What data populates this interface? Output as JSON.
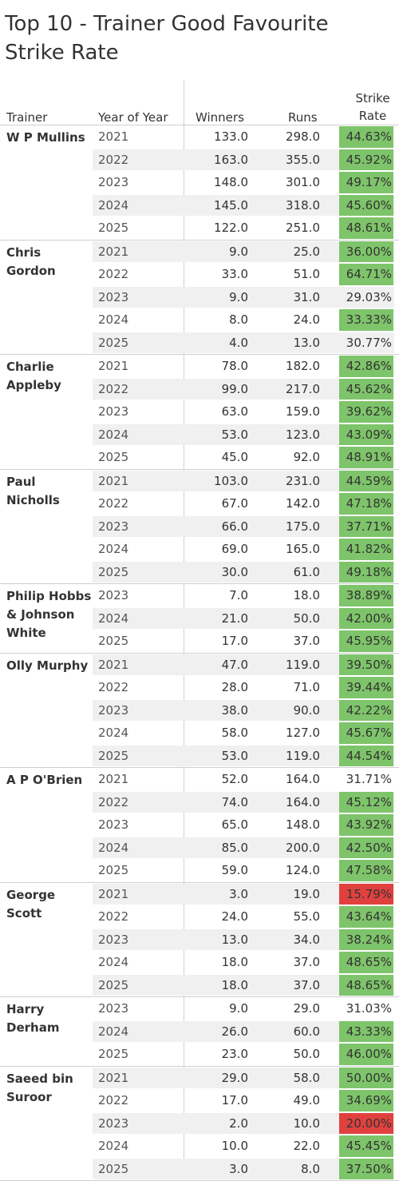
{
  "title": "Top 10 - Trainer Good Favourite Strike Rate",
  "headers": {
    "trainer": "Trainer",
    "year": "Year of Year",
    "winners": "Winners",
    "runs": "Runs",
    "strike_rate_line1": "Strike",
    "strike_rate_line2": "Rate"
  },
  "colors": {
    "green": "#7ec46a",
    "red": "#e0413e"
  },
  "chart_data": {
    "type": "table",
    "columns": [
      "Trainer",
      "Year of Year",
      "Winners",
      "Runs",
      "Strike Rate"
    ],
    "groups": [
      {
        "trainer": "W P Mullins",
        "rows": [
          {
            "year": "2021",
            "winners": "133.0",
            "runs": "298.0",
            "sr": "44.63%",
            "color": "green"
          },
          {
            "year": "2022",
            "winners": "163.0",
            "runs": "355.0",
            "sr": "45.92%",
            "color": "green"
          },
          {
            "year": "2023",
            "winners": "148.0",
            "runs": "301.0",
            "sr": "49.17%",
            "color": "green"
          },
          {
            "year": "2024",
            "winners": "145.0",
            "runs": "318.0",
            "sr": "45.60%",
            "color": "green"
          },
          {
            "year": "2025",
            "winners": "122.0",
            "runs": "251.0",
            "sr": "48.61%",
            "color": "green"
          }
        ]
      },
      {
        "trainer": "Chris Gordon",
        "rows": [
          {
            "year": "2021",
            "winners": "9.0",
            "runs": "25.0",
            "sr": "36.00%",
            "color": "green"
          },
          {
            "year": "2022",
            "winners": "33.0",
            "runs": "51.0",
            "sr": "64.71%",
            "color": "green"
          },
          {
            "year": "2023",
            "winners": "9.0",
            "runs": "31.0",
            "sr": "29.03%",
            "color": "none"
          },
          {
            "year": "2024",
            "winners": "8.0",
            "runs": "24.0",
            "sr": "33.33%",
            "color": "green"
          },
          {
            "year": "2025",
            "winners": "4.0",
            "runs": "13.0",
            "sr": "30.77%",
            "color": "none"
          }
        ]
      },
      {
        "trainer": "Charlie Appleby",
        "rows": [
          {
            "year": "2021",
            "winners": "78.0",
            "runs": "182.0",
            "sr": "42.86%",
            "color": "green"
          },
          {
            "year": "2022",
            "winners": "99.0",
            "runs": "217.0",
            "sr": "45.62%",
            "color": "green"
          },
          {
            "year": "2023",
            "winners": "63.0",
            "runs": "159.0",
            "sr": "39.62%",
            "color": "green"
          },
          {
            "year": "2024",
            "winners": "53.0",
            "runs": "123.0",
            "sr": "43.09%",
            "color": "green"
          },
          {
            "year": "2025",
            "winners": "45.0",
            "runs": "92.0",
            "sr": "48.91%",
            "color": "green"
          }
        ]
      },
      {
        "trainer": "Paul Nicholls",
        "rows": [
          {
            "year": "2021",
            "winners": "103.0",
            "runs": "231.0",
            "sr": "44.59%",
            "color": "green"
          },
          {
            "year": "2022",
            "winners": "67.0",
            "runs": "142.0",
            "sr": "47.18%",
            "color": "green"
          },
          {
            "year": "2023",
            "winners": "66.0",
            "runs": "175.0",
            "sr": "37.71%",
            "color": "green"
          },
          {
            "year": "2024",
            "winners": "69.0",
            "runs": "165.0",
            "sr": "41.82%",
            "color": "green"
          },
          {
            "year": "2025",
            "winners": "30.0",
            "runs": "61.0",
            "sr": "49.18%",
            "color": "green"
          }
        ]
      },
      {
        "trainer": "Philip Hobbs & Johnson White",
        "rows": [
          {
            "year": "2023",
            "winners": "7.0",
            "runs": "18.0",
            "sr": "38.89%",
            "color": "green"
          },
          {
            "year": "2024",
            "winners": "21.0",
            "runs": "50.0",
            "sr": "42.00%",
            "color": "green"
          },
          {
            "year": "2025",
            "winners": "17.0",
            "runs": "37.0",
            "sr": "45.95%",
            "color": "green"
          }
        ]
      },
      {
        "trainer": "Olly Murphy",
        "rows": [
          {
            "year": "2021",
            "winners": "47.0",
            "runs": "119.0",
            "sr": "39.50%",
            "color": "green"
          },
          {
            "year": "2022",
            "winners": "28.0",
            "runs": "71.0",
            "sr": "39.44%",
            "color": "green"
          },
          {
            "year": "2023",
            "winners": "38.0",
            "runs": "90.0",
            "sr": "42.22%",
            "color": "green"
          },
          {
            "year": "2024",
            "winners": "58.0",
            "runs": "127.0",
            "sr": "45.67%",
            "color": "green"
          },
          {
            "year": "2025",
            "winners": "53.0",
            "runs": "119.0",
            "sr": "44.54%",
            "color": "green"
          }
        ]
      },
      {
        "trainer": "A P O'Brien",
        "rows": [
          {
            "year": "2021",
            "winners": "52.0",
            "runs": "164.0",
            "sr": "31.71%",
            "color": "none"
          },
          {
            "year": "2022",
            "winners": "74.0",
            "runs": "164.0",
            "sr": "45.12%",
            "color": "green"
          },
          {
            "year": "2023",
            "winners": "65.0",
            "runs": "148.0",
            "sr": "43.92%",
            "color": "green"
          },
          {
            "year": "2024",
            "winners": "85.0",
            "runs": "200.0",
            "sr": "42.50%",
            "color": "green"
          },
          {
            "year": "2025",
            "winners": "59.0",
            "runs": "124.0",
            "sr": "47.58%",
            "color": "green"
          }
        ]
      },
      {
        "trainer": "George Scott",
        "rows": [
          {
            "year": "2021",
            "winners": "3.0",
            "runs": "19.0",
            "sr": "15.79%",
            "color": "red"
          },
          {
            "year": "2022",
            "winners": "24.0",
            "runs": "55.0",
            "sr": "43.64%",
            "color": "green"
          },
          {
            "year": "2023",
            "winners": "13.0",
            "runs": "34.0",
            "sr": "38.24%",
            "color": "green"
          },
          {
            "year": "2024",
            "winners": "18.0",
            "runs": "37.0",
            "sr": "48.65%",
            "color": "green"
          },
          {
            "year": "2025",
            "winners": "18.0",
            "runs": "37.0",
            "sr": "48.65%",
            "color": "green"
          }
        ]
      },
      {
        "trainer": "Harry Derham",
        "rows": [
          {
            "year": "2023",
            "winners": "9.0",
            "runs": "29.0",
            "sr": "31.03%",
            "color": "none"
          },
          {
            "year": "2024",
            "winners": "26.0",
            "runs": "60.0",
            "sr": "43.33%",
            "color": "green"
          },
          {
            "year": "2025",
            "winners": "23.0",
            "runs": "50.0",
            "sr": "46.00%",
            "color": "green"
          }
        ]
      },
      {
        "trainer": "Saeed bin Suroor",
        "rows": [
          {
            "year": "2021",
            "winners": "29.0",
            "runs": "58.0",
            "sr": "50.00%",
            "color": "green"
          },
          {
            "year": "2022",
            "winners": "17.0",
            "runs": "49.0",
            "sr": "34.69%",
            "color": "green"
          },
          {
            "year": "2023",
            "winners": "2.0",
            "runs": "10.0",
            "sr": "20.00%",
            "color": "red"
          },
          {
            "year": "2024",
            "winners": "10.0",
            "runs": "22.0",
            "sr": "45.45%",
            "color": "green"
          },
          {
            "year": "2025",
            "winners": "3.0",
            "runs": "8.0",
            "sr": "37.50%",
            "color": "green"
          }
        ]
      }
    ]
  }
}
